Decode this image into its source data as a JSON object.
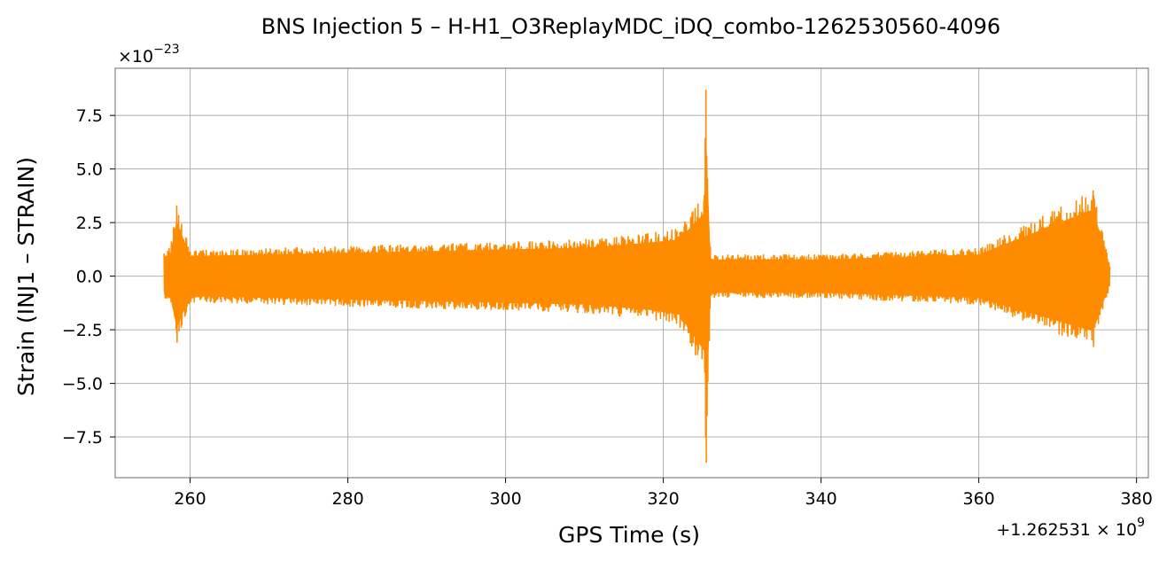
{
  "chart_data": {
    "type": "line",
    "title": "BNS Injection 5 – H-H1_O3ReplayMDC_iDQ_combo-1262530560-4096",
    "xlabel": "GPS Time (s)",
    "ylabel": "Strain (INJ1 – STRAIN)",
    "y_multiplier_text": "×10",
    "y_multiplier_exponent": "−23",
    "x_offset_text": "+1.262531 × 10",
    "x_offset_exponent": "9",
    "xlim": [
      250.5,
      381.5
    ],
    "ylim": [
      -9.4,
      9.7
    ],
    "x_ticks": [
      260,
      280,
      300,
      320,
      340,
      360,
      380
    ],
    "x_tick_labels": [
      "260",
      "280",
      "300",
      "320",
      "340",
      "360",
      "380"
    ],
    "y_ticks": [
      7.5,
      5.0,
      2.5,
      0.0,
      -2.5,
      -5.0,
      -7.5
    ],
    "y_tick_labels": [
      "7.5",
      "5.0",
      "2.5",
      "0.0",
      "−2.5",
      "−5.0",
      "−7.5"
    ],
    "grid": true,
    "series": [
      {
        "color": "#ff8c00",
        "envelope_points": [
          {
            "x": 256.7,
            "upper": 1.1,
            "lower": -1.1
          },
          {
            "x": 257.5,
            "upper": 1.4,
            "lower": -1.3
          },
          {
            "x": 258.3,
            "upper": 3.3,
            "lower": -3.1
          },
          {
            "x": 260,
            "upper": 1.2,
            "lower": -1.2
          },
          {
            "x": 270,
            "upper": 1.3,
            "lower": -1.3
          },
          {
            "x": 280,
            "upper": 1.4,
            "lower": -1.4
          },
          {
            "x": 290,
            "upper": 1.5,
            "lower": -1.5
          },
          {
            "x": 300,
            "upper": 1.6,
            "lower": -1.6
          },
          {
            "x": 310,
            "upper": 1.7,
            "lower": -1.7
          },
          {
            "x": 318,
            "upper": 2.0,
            "lower": -2.0
          },
          {
            "x": 322,
            "upper": 2.2,
            "lower": -2.3
          },
          {
            "x": 325.2,
            "upper": 3.8,
            "lower": -4.5
          },
          {
            "x": 325.4,
            "upper": 8.7,
            "lower": -8.7
          },
          {
            "x": 326,
            "upper": 1.0,
            "lower": -1.0
          },
          {
            "x": 340,
            "upper": 1.0,
            "lower": -1.0
          },
          {
            "x": 360,
            "upper": 1.3,
            "lower": -1.3
          },
          {
            "x": 374.5,
            "upper": 4.0,
            "lower": -3.3
          },
          {
            "x": 376.6,
            "upper": 0.5,
            "lower": -0.5
          }
        ]
      }
    ]
  }
}
